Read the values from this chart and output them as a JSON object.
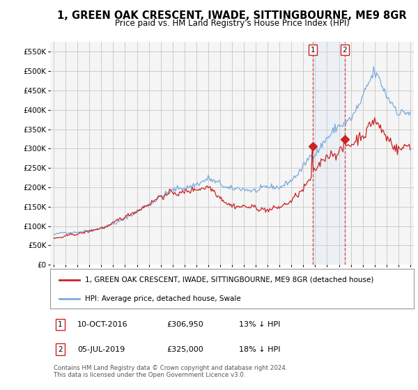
{
  "title": "1, GREEN OAK CRESCENT, IWADE, SITTINGBOURNE, ME9 8GR",
  "subtitle": "Price paid vs. HM Land Registry's House Price Index (HPI)",
  "hpi_label": "HPI: Average price, detached house, Swale",
  "property_label": "1, GREEN OAK CRESCENT, IWADE, SITTINGBOURNE, ME9 8GR (detached house)",
  "footnote": "Contains HM Land Registry data © Crown copyright and database right 2024.\nThis data is licensed under the Open Government Licence v3.0.",
  "sale1_date": "10-OCT-2016",
  "sale1_price": "£306,950",
  "sale1_note": "13% ↓ HPI",
  "sale2_date": "05-JUL-2019",
  "sale2_price": "£325,000",
  "sale2_note": "18% ↓ HPI",
  "sale1_x": 2016.78,
  "sale1_y": 306950,
  "sale2_x": 2019.5,
  "sale2_y": 325000,
  "ylim": [
    0,
    575000
  ],
  "yticks": [
    0,
    50000,
    100000,
    150000,
    200000,
    250000,
    300000,
    350000,
    400000,
    450000,
    500000,
    550000
  ],
  "xlim_start": 1994.7,
  "xlim_end": 2025.3,
  "hpi_color": "#7aaadd",
  "hpi_fill_color": "#c8dff5",
  "property_color": "#cc2222",
  "vline_color": "#cc4444",
  "sale_marker_color": "#cc2222",
  "background_color": "#f5f5f5",
  "grid_color": "#cccccc",
  "title_fontsize": 11,
  "subtitle_fontsize": 9
}
